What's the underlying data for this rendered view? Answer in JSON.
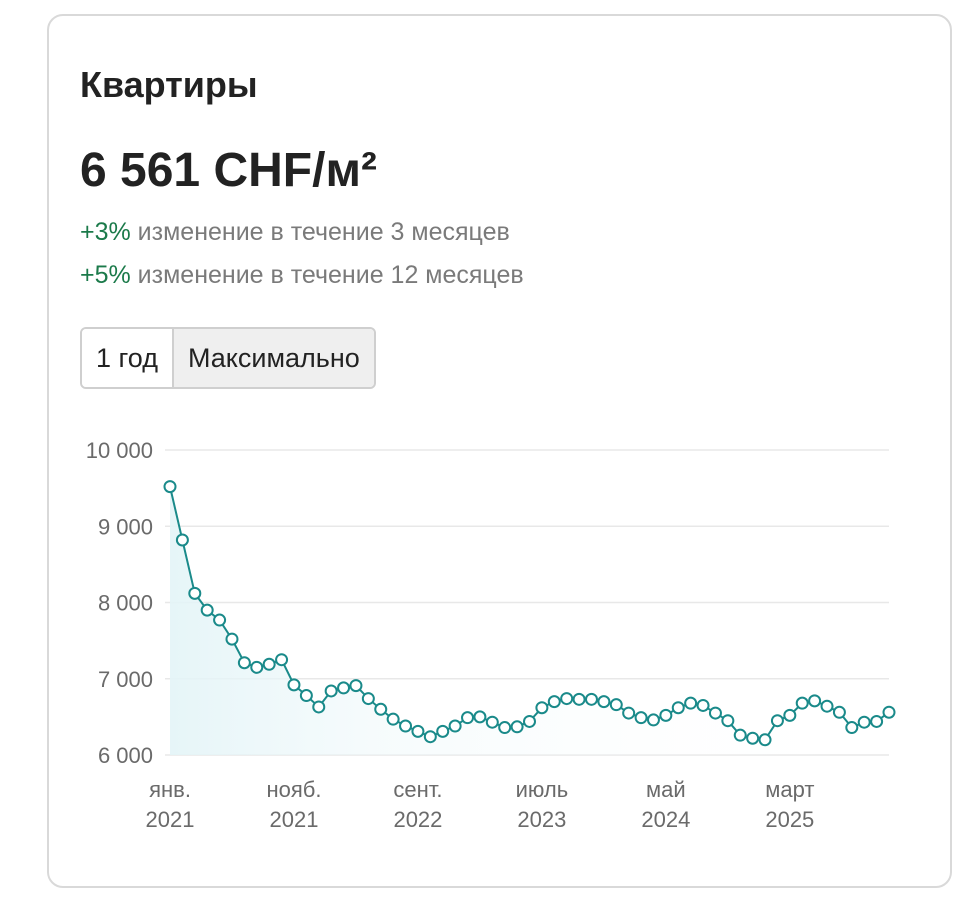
{
  "card": {
    "title": "Квартиры",
    "price": "6 561 CHF/м²",
    "change_3m": {
      "pct": "+3%",
      "text": " изменение в течение 3 месяцев"
    },
    "change_12m": {
      "pct": "+5%",
      "text": " изменение в течение 12 месяцев"
    },
    "range_buttons": [
      "1 год",
      "Максимально"
    ]
  },
  "colors": {
    "line": "#1a8a8a",
    "positive": "#1b7a4a",
    "grid": "#e8e8e8"
  },
  "chart_data": {
    "type": "line",
    "ylim": [
      6000,
      10000
    ],
    "yticks": [
      6000,
      7000,
      8000,
      9000,
      10000
    ],
    "ytick_labels": [
      "6 000",
      "7 000",
      "8 000",
      "9 000",
      "10 000"
    ],
    "xticks": [
      {
        "index": 0,
        "label1": "янв.",
        "label2": "2021"
      },
      {
        "index": 10,
        "label1": "нояб.",
        "label2": "2021"
      },
      {
        "index": 20,
        "label1": "сент.",
        "label2": "2022"
      },
      {
        "index": 30,
        "label1": "июль",
        "label2": "2023"
      },
      {
        "index": 40,
        "label1": "май",
        "label2": "2024"
      },
      {
        "index": 50,
        "label1": "март",
        "label2": "2025"
      }
    ],
    "grid": true,
    "legend": "none",
    "values": [
      9520,
      8820,
      8120,
      7900,
      7770,
      7520,
      7210,
      7150,
      7190,
      7250,
      6920,
      6780,
      6630,
      6840,
      6880,
      6910,
      6740,
      6600,
      6470,
      6380,
      6310,
      6240,
      6310,
      6380,
      6490,
      6500,
      6430,
      6360,
      6370,
      6440,
      6620,
      6700,
      6740,
      6730,
      6730,
      6700,
      6660,
      6550,
      6490,
      6460,
      6520,
      6620,
      6680,
      6650,
      6550,
      6450,
      6260,
      6220,
      6200,
      6450,
      6520,
      6680,
      6710,
      6640,
      6560,
      6360,
      6430,
      6440,
      6561
    ]
  }
}
